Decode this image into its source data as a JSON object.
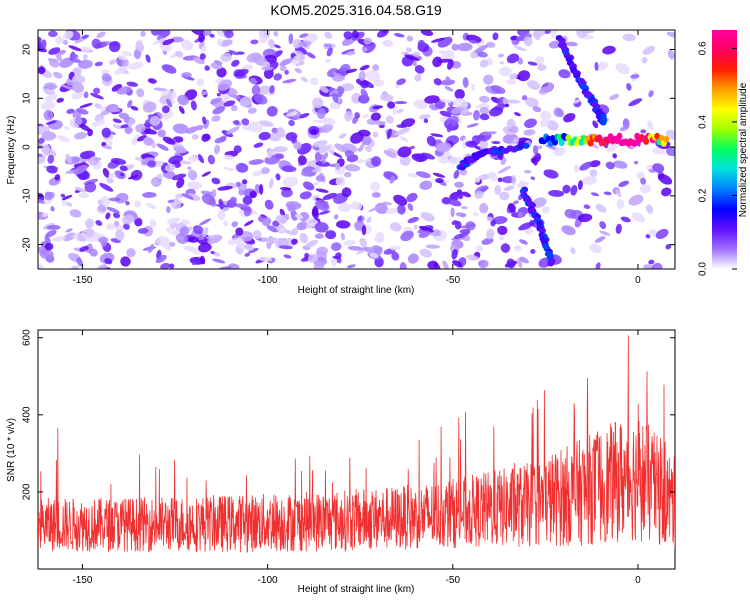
{
  "title": "KOM5.2025.316.04.58.G19",
  "chart_data": [
    {
      "type": "heatmap",
      "xlabel": "Height of straight line (km)",
      "ylabel": "Frequency (Hz)",
      "xlim": [
        -162,
        10
      ],
      "ylim": [
        -25,
        24
      ],
      "xticks": [
        -150,
        -100,
        -50,
        0
      ],
      "yticks": [
        -20,
        -10,
        0,
        10,
        20
      ],
      "colorbar": {
        "label": "Normalized spectral amplitude",
        "range": [
          0,
          0.65
        ],
        "ticks": [
          "0.0",
          "0.2",
          "0.4",
          "0.6"
        ],
        "colors": [
          "#ffffff",
          "#a070ff",
          "#6010ff",
          "#0000ff",
          "#0080ff",
          "#00e0e0",
          "#00ff60",
          "#a0ff00",
          "#ffff00",
          "#ffa000",
          "#ff2000",
          "#ff0060",
          "#ff00a0"
        ]
      },
      "features": [
        {
          "name": "horizontal band near 0 Hz",
          "x_range": [
            -26,
            8
          ],
          "frequency": 1.5,
          "peak_amplitude": 0.65,
          "peak_x": -4
        },
        {
          "name": "upper branch",
          "points": [
            [
              -21,
              22
            ],
            [
              -16,
              14
            ],
            [
              -12,
              9
            ],
            [
              -9,
              5
            ]
          ]
        },
        {
          "name": "lower branch",
          "points": [
            [
              -31,
              -9
            ],
            [
              -27,
              -15
            ],
            [
              -23,
              -24
            ]
          ]
        },
        {
          "name": "left band",
          "points": [
            [
              -48,
              -4
            ],
            [
              -42,
              -1
            ],
            [
              -30,
              0
            ]
          ]
        }
      ]
    },
    {
      "type": "line",
      "xlabel": "Height of straight line (km)",
      "ylabel": "SNR (10 * v/v)",
      "xlim": [
        -162,
        10
      ],
      "ylim": [
        0,
        620
      ],
      "xticks": [
        -150,
        -100,
        -50,
        0
      ],
      "yticks": [
        200,
        400,
        600
      ],
      "series": [
        {
          "name": "SNR",
          "color": "#f03030",
          "envelope": [
            {
              "x": -162,
              "mean": 115,
              "spread": 70,
              "max": 410
            },
            {
              "x": -140,
              "mean": 115,
              "spread": 70,
              "max": 300
            },
            {
              "x": -110,
              "mean": 118,
              "spread": 75,
              "max": 290
            },
            {
              "x": -80,
              "mean": 125,
              "spread": 80,
              "max": 310
            },
            {
              "x": -60,
              "mean": 135,
              "spread": 85,
              "max": 330
            },
            {
              "x": -45,
              "mean": 150,
              "spread": 95,
              "max": 420
            },
            {
              "x": -30,
              "mean": 165,
              "spread": 110,
              "max": 450
            },
            {
              "x": -15,
              "mean": 200,
              "spread": 140,
              "max": 560
            },
            {
              "x": -5,
              "mean": 230,
              "spread": 160,
              "max": 600
            },
            {
              "x": 0,
              "mean": 240,
              "spread": 170,
              "max": 620
            },
            {
              "x": 10,
              "mean": 170,
              "spread": 120,
              "max": 420
            }
          ]
        }
      ]
    }
  ]
}
